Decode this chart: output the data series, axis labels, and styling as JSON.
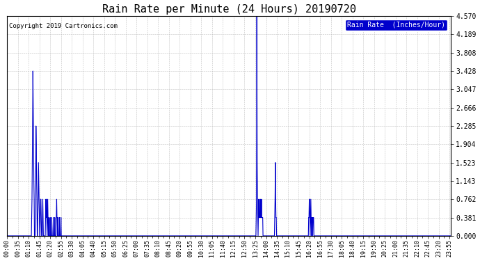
{
  "title": "Rain Rate per Minute (24 Hours) 20190720",
  "copyright_text": "Copyright 2019 Cartronics.com",
  "legend_label": "Rain Rate  (Inches/Hour)",
  "line_color": "#0000CC",
  "legend_bg": "#0000CC",
  "legend_text_color": "#FFFFFF",
  "background_color": "#FFFFFF",
  "grid_color": "#BBBBBB",
  "ytick_labels": [
    "0.000",
    "0.381",
    "0.762",
    "1.143",
    "1.523",
    "1.904",
    "2.285",
    "2.666",
    "3.047",
    "3.428",
    "3.808",
    "4.189",
    "4.570"
  ],
  "ytick_values": [
    0.0,
    0.381,
    0.762,
    1.143,
    1.523,
    1.904,
    2.285,
    2.666,
    3.047,
    3.428,
    3.808,
    4.189,
    4.57
  ],
  "ylim": [
    0.0,
    4.57
  ],
  "total_minutes": 1440,
  "xtick_labels": [
    "00:00",
    "00:35",
    "01:10",
    "01:45",
    "02:20",
    "02:55",
    "03:30",
    "04:05",
    "04:40",
    "05:15",
    "05:50",
    "06:25",
    "07:00",
    "07:35",
    "08:10",
    "08:45",
    "09:20",
    "09:55",
    "10:30",
    "11:05",
    "11:40",
    "12:15",
    "12:50",
    "13:25",
    "14:00",
    "14:35",
    "15:10",
    "15:45",
    "16:20",
    "16:55",
    "17:30",
    "18:05",
    "18:40",
    "19:15",
    "19:50",
    "20:25",
    "21:00",
    "21:35",
    "22:10",
    "22:45",
    "23:20",
    "23:55"
  ]
}
